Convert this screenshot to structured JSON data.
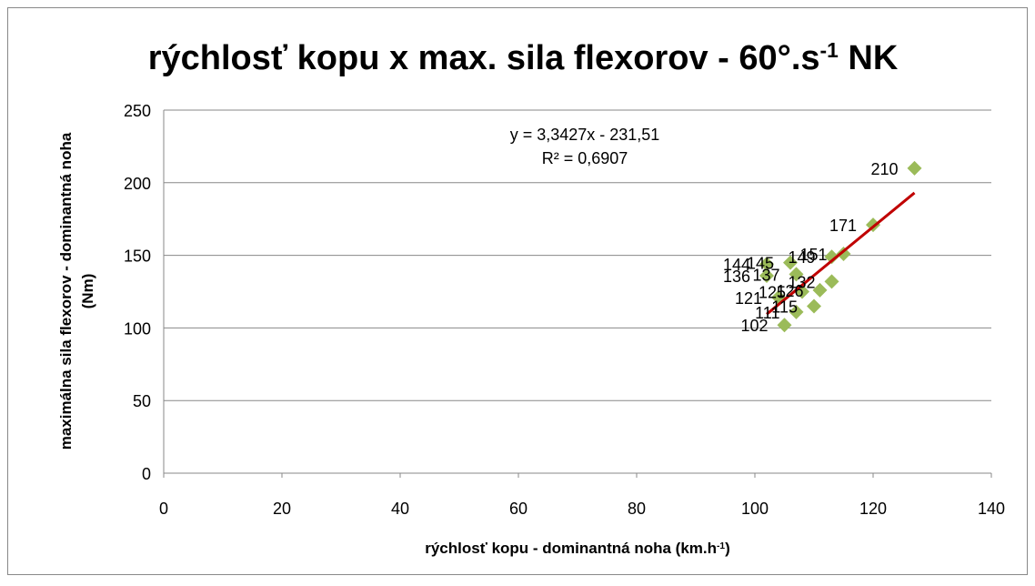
{
  "chart_data": {
    "type": "scatter",
    "title": [
      "rýchlosť kopu x max. sila flexorov - 60°.s",
      "-1",
      " NK"
    ],
    "x_label": [
      "rýchlosť kopu - dominantná noha (km.h",
      "-1",
      ")"
    ],
    "y_label": [
      "maximálna sila flexorov - dominantná noha",
      "(Nm)"
    ],
    "x": [
      127,
      120,
      115,
      113,
      106,
      102,
      102,
      107,
      113,
      111,
      108,
      104,
      110,
      107,
      105
    ],
    "values": [
      210,
      171,
      151,
      149,
      145,
      144,
      136,
      137,
      132,
      126,
      125,
      121,
      115,
      111,
      102
    ],
    "value_labels": [
      "210",
      "171",
      "151",
      "149",
      "145",
      "144",
      "136",
      "137",
      "132",
      "126",
      "125",
      "121",
      "115",
      "111",
      "102"
    ],
    "color": "#9bbb59",
    "trendline": {
      "slope": 3.3427,
      "intercept": -231.51,
      "color": "#c00000",
      "equation": "y = 3,3427x - 231,51",
      "r2": "R² = 0,6907"
    },
    "xlim": [
      0,
      140
    ],
    "xticks": [
      0,
      20,
      40,
      60,
      80,
      100,
      120,
      140
    ],
    "ylim": [
      0,
      250
    ],
    "yticks": [
      0,
      50,
      100,
      150,
      200,
      250
    ],
    "grid": true
  }
}
